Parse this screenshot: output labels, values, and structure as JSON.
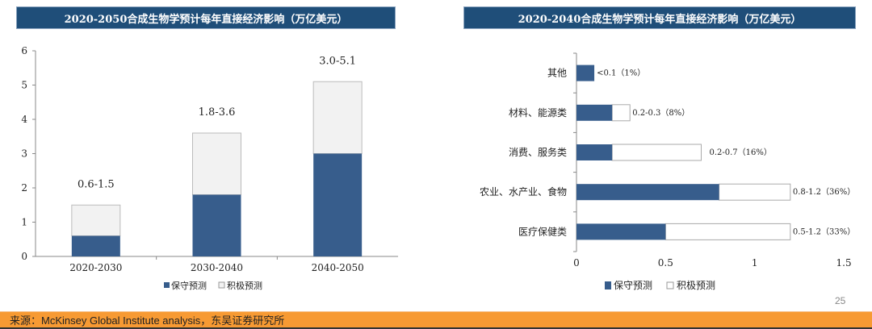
{
  "colors": {
    "conservative": "#375d8c",
    "aggressive_left": "#f2f2f2",
    "aggressive_right": "#ffffff",
    "banner": "#1f4e79"
  },
  "chart_data": [
    {
      "type": "bar",
      "title": "2020-2050合成生物学预计每年直接经济影响（万亿美元）",
      "categories": [
        "2020-2030",
        "2030-2040",
        "2040-2050"
      ],
      "series": [
        {
          "name": "保守预测",
          "values": [
            0.6,
            1.8,
            3.0
          ]
        },
        {
          "name": "积极预测",
          "values": [
            1.5,
            3.6,
            5.1
          ]
        }
      ],
      "data_labels": [
        "0.6-1.5",
        "1.8-3.6",
        "3.0-5.1"
      ],
      "yticks": [
        "0",
        "1",
        "2",
        "3",
        "4",
        "5",
        "6"
      ],
      "ylim": [
        0,
        6
      ],
      "legend": "bottom",
      "stacked_as_range": true
    },
    {
      "type": "bar",
      "orientation": "horizontal",
      "title": "2020-2040合成生物学预计每年直接经济影响（万亿美元）",
      "categories": [
        "其他",
        "材料、能源类",
        "消费、服务类",
        "农业、水产业、食物",
        "医疗保健类"
      ],
      "series": [
        {
          "name": "保守预测",
          "values": [
            0.1,
            0.2,
            0.2,
            0.8,
            0.5
          ]
        },
        {
          "name": "积极预测",
          "values": [
            0.1,
            0.3,
            0.7,
            1.2,
            1.2
          ]
        }
      ],
      "data_labels": [
        "<0.1（1%）",
        "0.2-0.3（8%）",
        "0.2-0.7（16%）",
        "0.8-1.2（36%）",
        "0.5-1.2（33%）"
      ],
      "xticks": [
        "0",
        "0.5",
        "1",
        "1.5"
      ],
      "xlim": [
        0,
        1.5
      ],
      "legend": "bottom"
    }
  ],
  "page_number": "25",
  "footer": "来源：McKinsey Global Institute analysis，东吴证券研究所"
}
